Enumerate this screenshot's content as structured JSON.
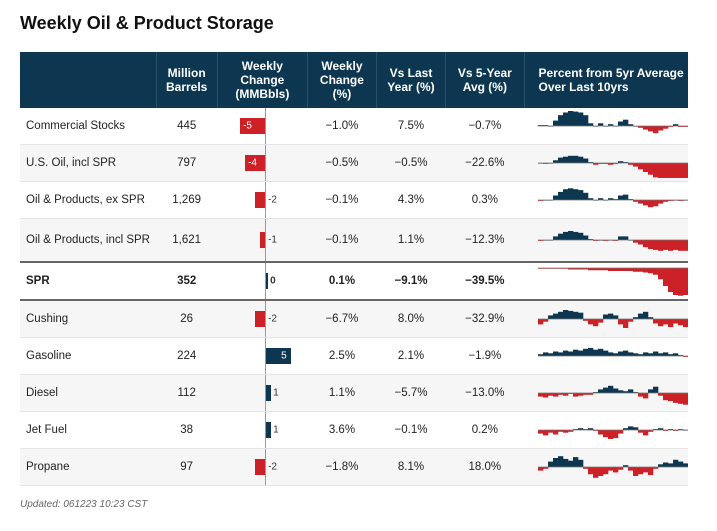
{
  "title": "Weekly Oil & Product Storage",
  "headers": [
    "",
    "Million Barrels",
    "Weekly Change (MMBbls)",
    "Weekly Change (%)",
    "Vs Last Year (%)",
    "Vs 5-Year Avg (%)",
    "Percent from 5yr Average Over Last 10yrs"
  ],
  "colors": {
    "header": "#0d3750",
    "positive": "#0d3750",
    "negative": "#cc2127"
  },
  "footer": "Updated: 061223 10:23 CST",
  "chart_data": {
    "type": "table",
    "rows": [
      {
        "name": "Commercial Stocks",
        "barrels": "445",
        "change": -5,
        "change_label": "-5",
        "pct": "−1.0%",
        "yoy": "7.5%",
        "vs5": "−0.7%",
        "spark": [
          1,
          1,
          0,
          6,
          12,
          15,
          17,
          16,
          15,
          12,
          3,
          0,
          3,
          0,
          2,
          0,
          5,
          7,
          2,
          0,
          -2,
          -4,
          -6,
          -8,
          -5,
          -3,
          -1,
          2,
          -1,
          -1
        ]
      },
      {
        "name": "U.S. Oil, incl SPR",
        "barrels": "797",
        "change": -4,
        "change_label": "-4",
        "pct": "−0.5%",
        "yoy": "−0.5%",
        "vs5": "−22.6%",
        "spark": [
          0,
          -1,
          0,
          3,
          6,
          7,
          8,
          8,
          7,
          5,
          1,
          -2,
          -1,
          -1,
          -2,
          -1,
          2,
          1,
          -2,
          -4,
          -7,
          -10,
          -13,
          -16,
          -19,
          -22,
          -24,
          -23,
          -22,
          -23
        ]
      },
      {
        "name": "Oil & Products, ex SPR",
        "barrels": "1,269",
        "change": -2,
        "change_label": "-2",
        "pct": "−0.1%",
        "yoy": "4.3%",
        "vs5": "0.3%",
        "spark": [
          -1,
          0,
          0,
          5,
          9,
          12,
          13,
          12,
          11,
          8,
          2,
          0,
          2,
          0,
          2,
          1,
          5,
          6,
          1,
          -2,
          -4,
          -6,
          -8,
          -7,
          -4,
          -2,
          -1,
          0,
          -1,
          0
        ]
      },
      {
        "name": "Oil & Products, incl SPR",
        "barrels": "1,621",
        "change": -1,
        "change_label": "-1",
        "pct": "−0.1%",
        "yoy": "1.1%",
        "vs5": "−12.3%",
        "spark": [
          -1,
          0,
          0,
          4,
          7,
          9,
          10,
          9,
          8,
          5,
          1,
          -1,
          0,
          -1,
          0,
          -1,
          4,
          4,
          0,
          -3,
          -5,
          -8,
          -10,
          -11,
          -12,
          -11,
          -12,
          -11,
          -12,
          -12
        ]
      },
      {
        "name": "SPR",
        "barrels": "352",
        "change": 0,
        "change_label": "0",
        "pct": "0.1%",
        "yoy": "−9.1%",
        "vs5": "−39.5%",
        "bold": true,
        "spark": [
          -1,
          -1,
          -1,
          -1,
          -1,
          -1,
          -2,
          -2,
          -2,
          -2,
          -3,
          -3,
          -3,
          -3,
          -4,
          -4,
          -4,
          -4,
          -4,
          -5,
          -5,
          -6,
          -7,
          -9,
          -15,
          -24,
          -32,
          -36,
          -37,
          -36
        ]
      },
      {
        "name": "Cushing",
        "barrels": "26",
        "change": -2,
        "change_label": "-2",
        "pct": "−6.7%",
        "yoy": "8.0%",
        "vs5": "−32.9%",
        "spark": [
          -6,
          -3,
          4,
          6,
          8,
          10,
          9,
          8,
          7,
          -2,
          -6,
          -8,
          -4,
          5,
          6,
          4,
          -6,
          -10,
          -3,
          2,
          6,
          8,
          2,
          -5,
          -8,
          -6,
          -9,
          -5,
          -7,
          -9
        ]
      },
      {
        "name": "Gasoline",
        "barrels": "224",
        "change": 5,
        "change_label": "5",
        "pct": "2.5%",
        "yoy": "2.1%",
        "vs5": "−1.9%",
        "spark": [
          2,
          4,
          3,
          5,
          4,
          6,
          5,
          7,
          6,
          8,
          9,
          7,
          8,
          6,
          4,
          3,
          5,
          6,
          4,
          3,
          2,
          4,
          3,
          5,
          3,
          4,
          2,
          3,
          1,
          -1
        ]
      },
      {
        "name": "Diesel",
        "barrels": "112",
        "change": 1,
        "change_label": "1",
        "pct": "1.1%",
        "yoy": "−5.7%",
        "vs5": "−13.0%",
        "spark": [
          -4,
          -5,
          -3,
          -4,
          -2,
          -3,
          -1,
          -4,
          -3,
          -2,
          -2,
          1,
          4,
          6,
          8,
          5,
          3,
          2,
          4,
          1,
          -4,
          -6,
          4,
          7,
          -3,
          -8,
          -9,
          -11,
          -12,
          -13
        ]
      },
      {
        "name": "Jet Fuel",
        "barrels": "38",
        "change": 1,
        "change_label": "1",
        "pct": "3.6%",
        "yoy": "−0.1%",
        "vs5": "0.2%",
        "spark": [
          -4,
          -6,
          -3,
          -5,
          -2,
          -3,
          -2,
          1,
          2,
          1,
          2,
          -1,
          -5,
          -8,
          -10,
          -9,
          -4,
          2,
          4,
          3,
          -3,
          -6,
          -2,
          1,
          2,
          -1,
          1,
          -1,
          1,
          0
        ]
      },
      {
        "name": "Propane",
        "barrels": "97",
        "change": -2,
        "change_label": "-2",
        "pct": "−1.8%",
        "yoy": "8.1%",
        "vs5": "18.0%",
        "spark": [
          -4,
          -2,
          6,
          10,
          12,
          9,
          7,
          11,
          8,
          -2,
          -8,
          -12,
          -10,
          -8,
          -4,
          -6,
          -3,
          2,
          -4,
          -10,
          -8,
          -6,
          -9,
          -2,
          3,
          5,
          4,
          8,
          6,
          4
        ]
      }
    ]
  }
}
